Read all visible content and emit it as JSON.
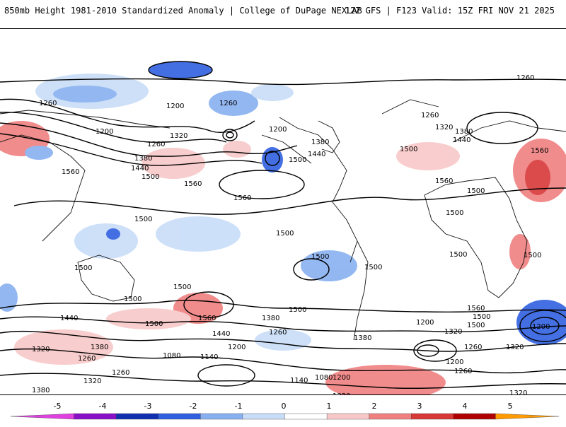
{
  "header": {
    "title": "850mb Height 1981-2010 Standardized Anomaly | College of DuPage NEXLAB",
    "run_info": "12Z GFS | F123 Valid: 15Z FRI NOV 21 2025"
  },
  "map": {
    "contour_labels": [
      "1260",
      "1260",
      "1260",
      "1260",
      "1200",
      "1200",
      "1200",
      "1320",
      "1260",
      "1380",
      "1440",
      "1500",
      "1320",
      "1380",
      "1440",
      "1500",
      "1560",
      "1560",
      "1380",
      "1440",
      "1500",
      "1500",
      "1560",
      "1500",
      "1560",
      "1560",
      "1500",
      "1500",
      "1500",
      "1500",
      "1500",
      "1500",
      "1500",
      "1500",
      "1500",
      "1500",
      "1500",
      "1560",
      "1440",
      "1500",
      "1380",
      "1260",
      "1440",
      "1380",
      "1320",
      "1260",
      "1200",
      "1140",
      "1080",
      "1200",
      "1080",
      "1140",
      "1320",
      "1260",
      "1380",
      "1320",
      "1200",
      "1260",
      "1380",
      "1500",
      "1560",
      "1200",
      "1320",
      "1260",
      "1200",
      "1260",
      "1320",
      "1320",
      "1200"
    ]
  },
  "colorbar": {
    "tick_labels": [
      "-5",
      "-4",
      "-3",
      "-2",
      "-1",
      "0",
      "1",
      "2",
      "3",
      "4",
      "5"
    ],
    "colors": [
      "#e040e0",
      "#8a10c8",
      "#1030b0",
      "#3060e0",
      "#88b0f0",
      "#c8ddf8",
      "#ffffff",
      "#f8c8c8",
      "#f08080",
      "#d83838",
      "#b00000",
      "#ff9a00"
    ]
  }
}
